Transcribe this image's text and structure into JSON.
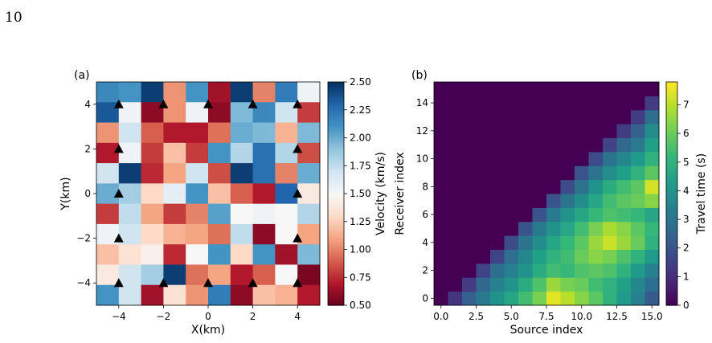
{
  "page": {
    "number": "10"
  },
  "chart_data": [
    {
      "type": "heatmap",
      "panel_label": "(a)",
      "xlabel": "X(km)",
      "ylabel": "Y(km)",
      "xlim": [
        -5,
        5
      ],
      "ylim": [
        -5,
        5
      ],
      "xticks": [
        -4,
        -2,
        0,
        2,
        4
      ],
      "yticks": [
        -4,
        -2,
        0,
        2,
        4
      ],
      "xtick_labels": [
        "−4",
        "−2",
        "0",
        "2",
        "4"
      ],
      "ytick_labels": [
        "−4",
        "−2",
        "0",
        "2",
        "4"
      ],
      "colormap": "RdBu",
      "colorbar": {
        "label": "Velocity (km/s)",
        "vmin": 0.5,
        "vmax": 2.5,
        "ticks": [
          0.5,
          0.75,
          1.0,
          1.25,
          1.5,
          1.75,
          2.0,
          2.25,
          2.5
        ],
        "tick_labels": [
          "0.50",
          "0.75",
          "1.00",
          "1.25",
          "1.50",
          "1.75",
          "2.00",
          "2.25",
          "2.50"
        ]
      },
      "rows_top_to_bottom": [
        [
          2.15,
          2.1,
          2.45,
          1.05,
          2.1,
          0.65,
          2.45,
          1.0,
          2.2,
          1.55
        ],
        [
          2.35,
          1.55,
          0.6,
          1.05,
          1.55,
          0.6,
          1.95,
          2.15,
          1.7,
          0.8
        ],
        [
          1.05,
          1.7,
          0.9,
          0.7,
          0.7,
          0.95,
          2.0,
          1.95,
          1.15,
          1.95
        ],
        [
          0.7,
          1.55,
          0.8,
          1.2,
          0.8,
          2.1,
          1.8,
          2.25,
          1.8,
          0.85
        ],
        [
          1.7,
          2.45,
          0.75,
          1.1,
          1.7,
          0.85,
          2.45,
          2.25,
          1.0,
          2.0
        ],
        [
          2.0,
          1.85,
          1.3,
          1.6,
          2.1,
          1.2,
          0.9,
          0.7,
          2.3,
          1.4
        ],
        [
          0.8,
          1.75,
          1.1,
          0.8,
          1.0,
          2.05,
          1.5,
          1.55,
          1.5,
          1.8
        ],
        [
          1.55,
          1.7,
          1.3,
          1.15,
          1.1,
          0.95,
          1.75,
          0.6,
          1.5,
          1.1
        ],
        [
          1.2,
          1.35,
          1.45,
          0.75,
          1.5,
          2.1,
          1.3,
          2.1,
          0.65,
          1.95
        ],
        [
          1.4,
          1.7,
          1.85,
          2.45,
          0.95,
          1.1,
          0.7,
          0.9,
          1.5,
          0.55
        ],
        [
          2.1,
          1.7,
          0.65,
          1.35,
          1.05,
          2.2,
          0.6,
          1.2,
          1.15,
          0.7
        ]
      ],
      "receivers": {
        "marker": "triangle",
        "points": [
          [
            -4,
            4
          ],
          [
            -2,
            4
          ],
          [
            0,
            4
          ],
          [
            2,
            4
          ],
          [
            4,
            4
          ],
          [
            -4,
            2
          ],
          [
            4,
            2
          ],
          [
            -4,
            0
          ],
          [
            4,
            0
          ],
          [
            -4,
            -2
          ],
          [
            4,
            -2
          ],
          [
            -4,
            -4
          ],
          [
            -2,
            -4
          ],
          [
            0,
            -4
          ],
          [
            2,
            -4
          ],
          [
            4,
            -4
          ]
        ]
      }
    },
    {
      "type": "heatmap",
      "panel_label": "(b)",
      "xlabel": "Source index",
      "ylabel": "Receiver index",
      "xlim": [
        -0.5,
        15.5
      ],
      "ylim": [
        -0.5,
        15.5
      ],
      "xticks": [
        0,
        2.5,
        5,
        7.5,
        10,
        12.5,
        15
      ],
      "yticks": [
        0,
        2,
        4,
        6,
        8,
        10,
        12,
        14
      ],
      "xtick_labels": [
        "0.0",
        "2.5",
        "5.0",
        "7.5",
        "10.0",
        "12.5",
        "15.0"
      ],
      "ytick_labels": [
        "0",
        "2",
        "4",
        "6",
        "8",
        "10",
        "12",
        "14"
      ],
      "colormap": "viridis",
      "colorbar": {
        "label": "Travel time (s)",
        "vmin": 0,
        "vmax": 7.8,
        "ticks": [
          0,
          1,
          2,
          3,
          4,
          5,
          6,
          7
        ],
        "tick_labels": [
          "0",
          "1",
          "2",
          "3",
          "4",
          "5",
          "6",
          "7"
        ]
      },
      "rows_receiver_0_to_15": [
        [
          0,
          1.2,
          2.4,
          3.2,
          4.0,
          4.6,
          5.4,
          6.2,
          7.5,
          7.0,
          6.4,
          5.8,
          5.0,
          4.2,
          3.4,
          2.2
        ],
        [
          0,
          0,
          1.4,
          2.6,
          3.4,
          4.0,
          4.8,
          5.6,
          6.6,
          6.2,
          6.0,
          5.4,
          5.0,
          4.4,
          3.6,
          2.8
        ],
        [
          0,
          0,
          0,
          1.6,
          2.8,
          3.4,
          4.0,
          4.8,
          5.4,
          5.2,
          5.6,
          5.8,
          5.6,
          5.0,
          4.2,
          3.4
        ],
        [
          0,
          0,
          0,
          0,
          1.6,
          2.8,
          3.6,
          4.4,
          5.0,
          5.4,
          6.0,
          6.4,
          6.2,
          5.6,
          5.0,
          4.2
        ],
        [
          0,
          0,
          0,
          0,
          0,
          1.8,
          3.0,
          3.8,
          4.6,
          5.2,
          5.8,
          6.6,
          7.2,
          6.6,
          6.0,
          5.0
        ],
        [
          0,
          0,
          0,
          0,
          0,
          0,
          2.0,
          3.2,
          4.0,
          4.6,
          5.4,
          6.2,
          6.8,
          6.4,
          5.8,
          5.2
        ],
        [
          0,
          0,
          0,
          0,
          0,
          0,
          0,
          2.0,
          3.2,
          4.0,
          4.6,
          5.2,
          5.6,
          5.4,
          5.2,
          4.6
        ],
        [
          0,
          0,
          0,
          0,
          0,
          0,
          0,
          0,
          2.0,
          3.0,
          3.8,
          4.6,
          5.4,
          5.8,
          6.0,
          6.4
        ],
        [
          0,
          0,
          0,
          0,
          0,
          0,
          0,
          0,
          0,
          1.8,
          3.0,
          4.0,
          4.8,
          5.4,
          5.8,
          7.3
        ],
        [
          0,
          0,
          0,
          0,
          0,
          0,
          0,
          0,
          0,
          0,
          2.0,
          3.0,
          3.8,
          4.4,
          5.0,
          5.8
        ],
        [
          0,
          0,
          0,
          0,
          0,
          0,
          0,
          0,
          0,
          0,
          0,
          1.8,
          3.0,
          3.6,
          4.2,
          5.0
        ],
        [
          0,
          0,
          0,
          0,
          0,
          0,
          0,
          0,
          0,
          0,
          0,
          0,
          1.6,
          2.6,
          3.2,
          4.4
        ],
        [
          0,
          0,
          0,
          0,
          0,
          0,
          0,
          0,
          0,
          0,
          0,
          0,
          0,
          1.4,
          2.4,
          3.8
        ],
        [
          0,
          0,
          0,
          0,
          0,
          0,
          0,
          0,
          0,
          0,
          0,
          0,
          0,
          0,
          1.4,
          2.8
        ],
        [
          0,
          0,
          0,
          0,
          0,
          0,
          0,
          0,
          0,
          0,
          0,
          0,
          0,
          0,
          0,
          1.4
        ],
        [
          0,
          0,
          0,
          0,
          0,
          0,
          0,
          0,
          0,
          0,
          0,
          0,
          0,
          0,
          0,
          0
        ]
      ]
    }
  ]
}
